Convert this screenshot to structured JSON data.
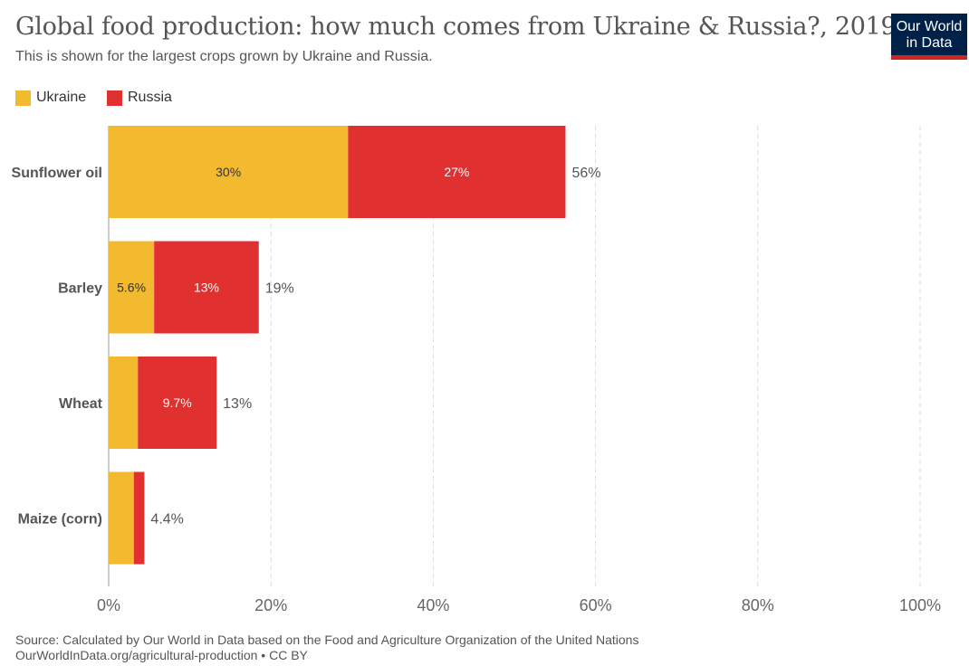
{
  "title": "Global food production: how much comes from Ukraine & Russia?, 2019",
  "subtitle": "This is shown for the largest crops grown by Ukraine and Russia.",
  "logo": {
    "line1": "Our World",
    "line2": "in Data"
  },
  "footer": {
    "source": "Source: Calculated by Our World in Data based on the Food and Agriculture Organization of the United Nations",
    "link": "OurWorldInData.org/agricultural-production • CC BY"
  },
  "chart_data": {
    "type": "bar",
    "orientation": "horizontal",
    "stacked": true,
    "categories": [
      "Sunflower oil",
      "Barley",
      "Wheat",
      "Maize (corn)"
    ],
    "series": [
      {
        "name": "Ukraine",
        "color": "#f3ba2f",
        "values": [
          29.5,
          5.6,
          3.6,
          3.1
        ],
        "labels": [
          "30%",
          "5.6%",
          "",
          ""
        ]
      },
      {
        "name": "Russia",
        "color": "#e03030",
        "values": [
          26.8,
          12.9,
          9.7,
          1.3
        ],
        "labels": [
          "27%",
          "13%",
          "9.7%",
          ""
        ]
      }
    ],
    "totals": [
      "56%",
      "19%",
      "13%",
      "4.4%"
    ],
    "xlim": [
      0,
      100
    ],
    "xticks": [
      "0%",
      "20%",
      "40%",
      "60%",
      "80%",
      "100%"
    ],
    "grid": true,
    "legend": "top-left"
  }
}
